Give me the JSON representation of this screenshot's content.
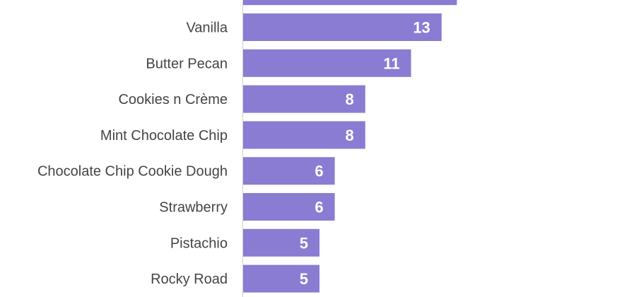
{
  "chart_data": {
    "type": "bar",
    "orientation": "horizontal",
    "categories": [
      "Vanilla",
      "Butter Pecan ",
      "Cookies n Crème",
      "Mint Chocolate Chip",
      "Chocolate Chip Cookie Dough",
      "Strawberry",
      "Pistachio",
      "Rocky Road"
    ],
    "values": [
      13,
      11,
      8,
      8,
      6,
      6,
      5,
      5
    ],
    "value_labels": [
      "13",
      "11",
      "8",
      "8",
      "6",
      "6",
      "5",
      "5"
    ],
    "partial_top_bar": {
      "value": 14
    },
    "xlim": [
      0,
      25
    ],
    "bar_color": "#8a7cd3",
    "axis_color": "#cfcfcf",
    "grid": false,
    "legend": "none"
  }
}
